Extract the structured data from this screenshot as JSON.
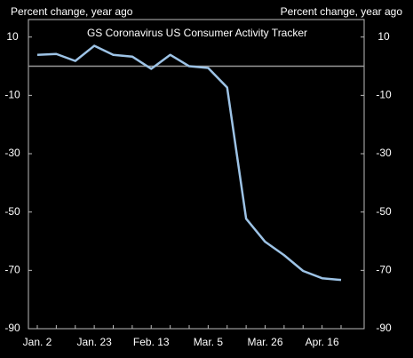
{
  "chart_data": {
    "type": "line",
    "title": "GS Coronavirus  US Consumer Activity Tracker",
    "y_label_left": "Percent change, year ago",
    "y_label_right": "Percent change, year ago",
    "categories": [
      "Jan. 2",
      null,
      null,
      "Jan. 23",
      null,
      null,
      "Feb. 13",
      null,
      null,
      "Mar. 5",
      null,
      null,
      "Mar. 26",
      null,
      null,
      "Apr. 16",
      null
    ],
    "series": [
      {
        "name": "GS Coronavirus US Consumer Activity Tracker",
        "color": "#9dc3e6",
        "values": [
          3.9,
          4.2,
          1.8,
          7.0,
          3.9,
          3.3,
          -0.9,
          3.9,
          0,
          -0.6,
          -7.3,
          -52.3,
          -60.2,
          -64.8,
          -70.2,
          -72.7,
          -73.3
        ]
      }
    ],
    "ylim": [
      -90,
      16
    ],
    "yticks": [
      10,
      -10,
      -30,
      -50,
      -70,
      -90
    ],
    "reference_line": 0
  }
}
